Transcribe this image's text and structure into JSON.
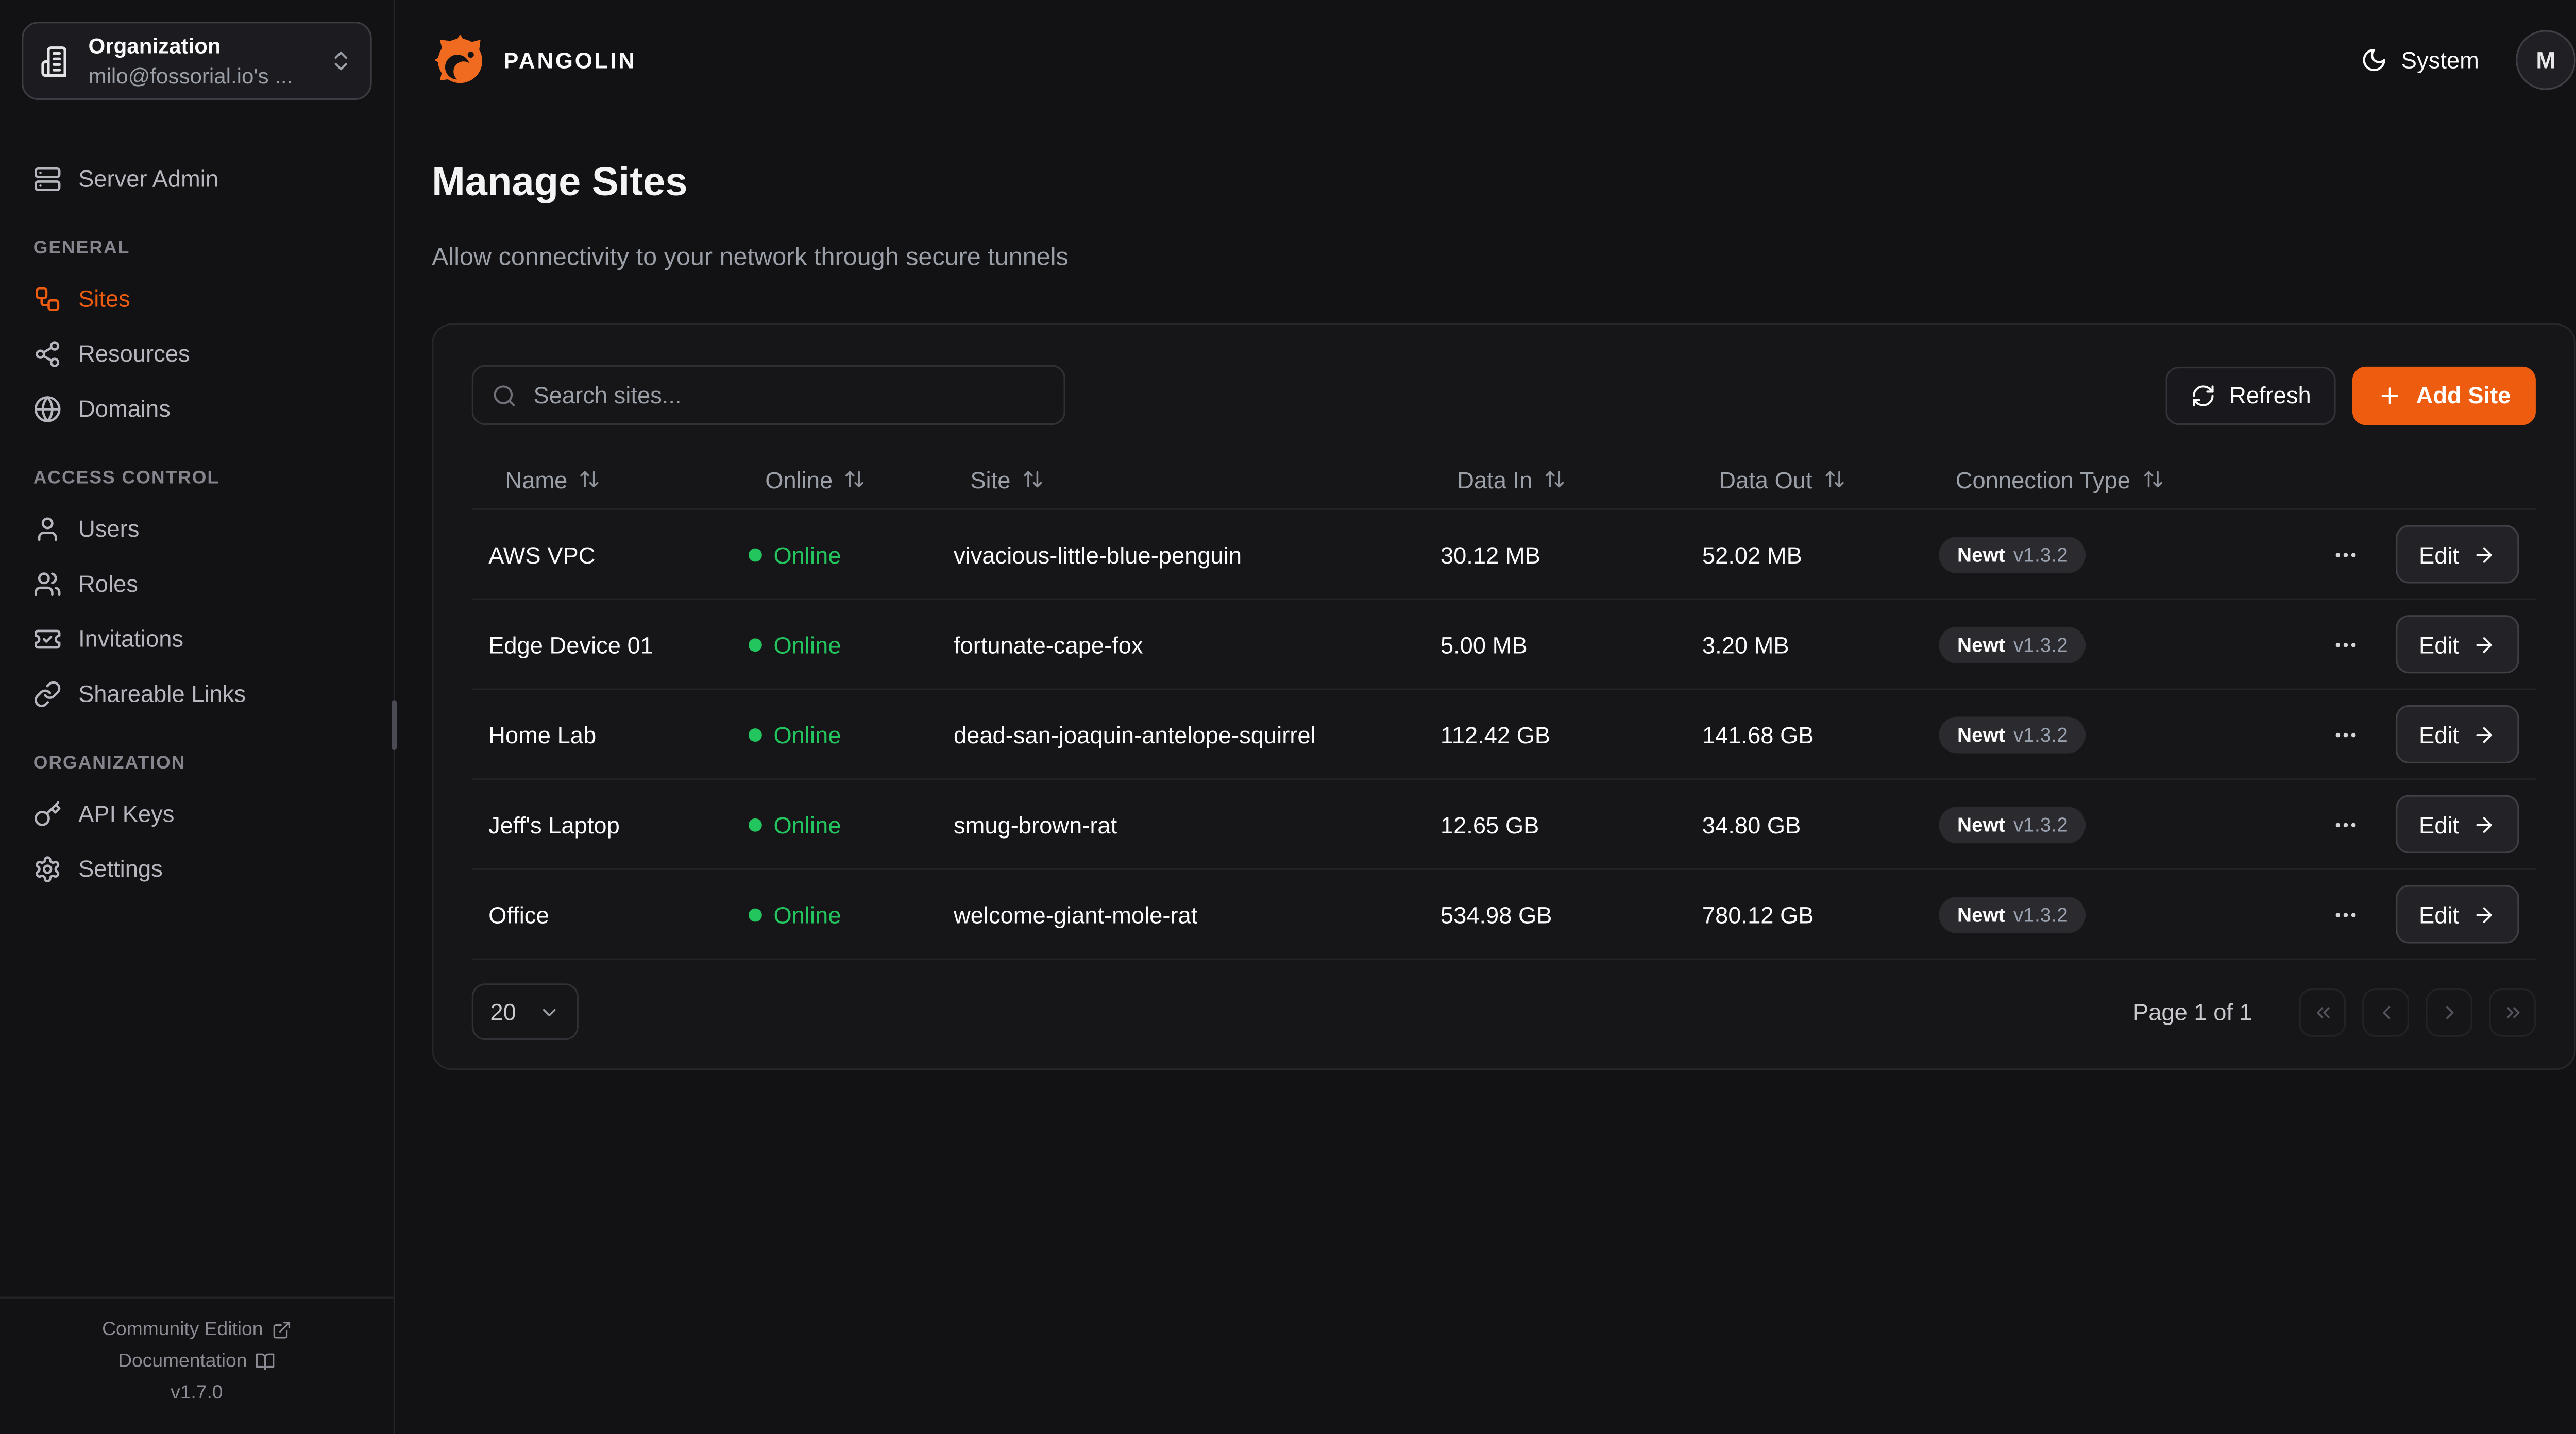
{
  "org_selector": {
    "label": "Organization",
    "value": "milo@fossorial.io's ..."
  },
  "sidebar": {
    "server_admin": "Server Admin",
    "sections": [
      {
        "label": "GENERAL",
        "items": [
          {
            "label": "Sites",
            "active": true
          },
          {
            "label": "Resources",
            "active": false
          },
          {
            "label": "Domains",
            "active": false
          }
        ]
      },
      {
        "label": "ACCESS CONTROL",
        "items": [
          {
            "label": "Users",
            "active": false
          },
          {
            "label": "Roles",
            "active": false
          },
          {
            "label": "Invitations",
            "active": false
          },
          {
            "label": "Shareable Links",
            "active": false
          }
        ]
      },
      {
        "label": "ORGANIZATION",
        "items": [
          {
            "label": "API Keys",
            "active": false
          },
          {
            "label": "Settings",
            "active": false
          }
        ]
      }
    ],
    "footer": {
      "community_edition": "Community Edition",
      "documentation": "Documentation",
      "version": "v1.7.0"
    }
  },
  "header": {
    "brand": "PANGOLIN",
    "theme_label": "System",
    "avatar_initial": "M"
  },
  "page": {
    "title": "Manage Sites",
    "subtitle": "Allow connectivity to your network through secure tunnels"
  },
  "toolbar": {
    "search_placeholder": "Search sites...",
    "refresh_label": "Refresh",
    "add_site_label": "Add Site"
  },
  "table": {
    "columns": [
      "Name",
      "Online",
      "Site",
      "Data In",
      "Data Out",
      "Connection Type"
    ],
    "edit_label": "Edit",
    "rows": [
      {
        "name": "AWS VPC",
        "status": "Online",
        "site": "vivacious-little-blue-penguin",
        "data_in": "30.12 MB",
        "data_out": "52.02 MB",
        "conn_type": "Newt",
        "conn_version": "v1.3.2"
      },
      {
        "name": "Edge Device 01",
        "status": "Online",
        "site": "fortunate-cape-fox",
        "data_in": "5.00 MB",
        "data_out": "3.20 MB",
        "conn_type": "Newt",
        "conn_version": "v1.3.2"
      },
      {
        "name": "Home Lab",
        "status": "Online",
        "site": "dead-san-joaquin-antelope-squirrel",
        "data_in": "112.42 GB",
        "data_out": "141.68 GB",
        "conn_type": "Newt",
        "conn_version": "v1.3.2"
      },
      {
        "name": "Jeff's Laptop",
        "status": "Online",
        "site": "smug-brown-rat",
        "data_in": "12.65 GB",
        "data_out": "34.80 GB",
        "conn_type": "Newt",
        "conn_version": "v1.3.2"
      },
      {
        "name": "Office",
        "status": "Online",
        "site": "welcome-giant-mole-rat",
        "data_in": "534.98 GB",
        "data_out": "780.12 GB",
        "conn_type": "Newt",
        "conn_version": "v1.3.2"
      }
    ]
  },
  "pagination": {
    "page_size": "20",
    "page_info": "Page 1 of 1"
  },
  "colors": {
    "accent": "#ED5C0F",
    "online_green": "#22c55e",
    "logo_orange": "#F06A1F",
    "background": "#121215",
    "card": "#161619"
  }
}
